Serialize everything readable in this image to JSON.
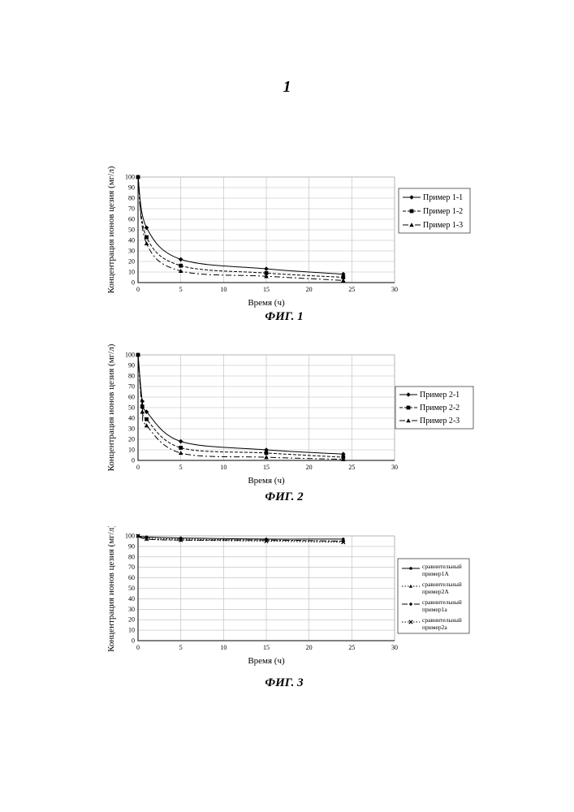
{
  "page": {
    "number": "1"
  },
  "chart_data": [
    {
      "type": "line",
      "caption": "ФИГ. 1",
      "xlabel": "Время (ч)",
      "ylabel": "Концентрация ионов цезия (мг/л)",
      "xlim": [
        0,
        30
      ],
      "ylim": [
        0,
        100
      ],
      "xticks": [
        0,
        5,
        10,
        15,
        20,
        25,
        30
      ],
      "yticks": [
        0,
        10,
        20,
        30,
        40,
        50,
        60,
        70,
        80,
        90,
        100
      ],
      "grid": true,
      "legend_position": "right",
      "series": [
        {
          "name": "Пример 1-1",
          "marker": "diamond",
          "dash": "solid",
          "x": [
            0,
            1,
            5,
            15,
            24
          ],
          "y": [
            100,
            52,
            22,
            13,
            8
          ]
        },
        {
          "name": "Пример 1-2",
          "marker": "square",
          "dash": "dashed",
          "x": [
            0,
            1,
            5,
            15,
            24
          ],
          "y": [
            100,
            43,
            16,
            9,
            5
          ]
        },
        {
          "name": "Пример 1-3",
          "marker": "triangle",
          "dash": "dashdot",
          "x": [
            0,
            1,
            5,
            15,
            24
          ],
          "y": [
            100,
            37,
            11,
            6,
            2
          ]
        }
      ]
    },
    {
      "type": "line",
      "caption": "ФИГ. 2",
      "xlabel": "Время (ч)",
      "ylabel": "Концентрация ионов цезия (мг/л)",
      "xlim": [
        0,
        30
      ],
      "ylim": [
        0,
        100
      ],
      "xticks": [
        0,
        5,
        10,
        15,
        20,
        25,
        30
      ],
      "yticks": [
        0,
        10,
        20,
        30,
        40,
        50,
        60,
        70,
        80,
        90,
        100
      ],
      "grid": true,
      "legend_position": "right",
      "series": [
        {
          "name": "Пример 2-1",
          "marker": "diamond",
          "dash": "solid",
          "x": [
            0,
            0.5,
            1,
            5,
            15,
            24
          ],
          "y": [
            100,
            56,
            46,
            18,
            10,
            6
          ]
        },
        {
          "name": "Пример 2-2",
          "marker": "square",
          "dash": "dashed",
          "x": [
            0,
            0.5,
            1,
            5,
            15,
            24
          ],
          "y": [
            100,
            51,
            39,
            12,
            7,
            3
          ]
        },
        {
          "name": "Пример 2-3",
          "marker": "triangle",
          "dash": "dashdot",
          "x": [
            0,
            0.5,
            1,
            5,
            15,
            24
          ],
          "y": [
            100,
            46,
            33,
            7,
            3,
            1
          ]
        }
      ]
    },
    {
      "type": "line",
      "caption": "ФИГ. 3",
      "xlabel": "Время (ч)",
      "ylabel": "Концентрация ионов цезия (мг/л)",
      "xlim": [
        0,
        30
      ],
      "ylim": [
        0,
        100
      ],
      "xticks": [
        0,
        5,
        10,
        15,
        20,
        25,
        30
      ],
      "yticks": [
        0,
        10,
        20,
        30,
        40,
        50,
        60,
        70,
        80,
        90,
        100
      ],
      "grid": true,
      "legend_position": "right",
      "series": [
        {
          "name": [
            "сравнительный",
            "пример1A"
          ],
          "marker": "circle",
          "dash": "solid",
          "x": [
            0,
            1,
            5,
            15,
            24
          ],
          "y": [
            100,
            99,
            98,
            97,
            97
          ]
        },
        {
          "name": [
            "сравнительный",
            "пример2A"
          ],
          "marker": "triangle",
          "dash": "dotted",
          "x": [
            0,
            1,
            5,
            15,
            24
          ],
          "y": [
            100,
            98,
            97,
            96,
            95
          ]
        },
        {
          "name": [
            "сравнительный",
            "пример1а"
          ],
          "marker": "diamond",
          "dash": "dashdot",
          "x": [
            0,
            1,
            5,
            15,
            24
          ],
          "y": [
            100,
            97,
            96,
            96,
            95
          ]
        },
        {
          "name": [
            "сравнительный",
            "пример2а"
          ],
          "marker": "x",
          "dash": "dotted",
          "x": [
            0,
            1,
            5,
            15,
            24
          ],
          "y": [
            100,
            97,
            96,
            95,
            94
          ]
        }
      ]
    }
  ]
}
